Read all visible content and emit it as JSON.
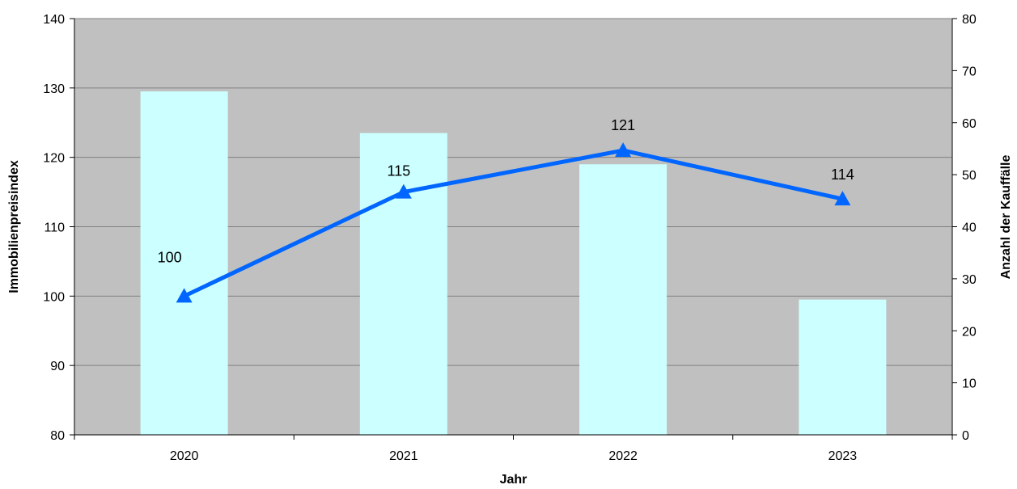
{
  "chart_data": {
    "type": "bar+line",
    "categories": [
      "2020",
      "2021",
      "2022",
      "2023"
    ],
    "xlabel": "Jahr",
    "ylabel_left": "Immobilienpreisindex",
    "ylabel_right": "Anzahl der Kauffälle",
    "ylim_left": [
      80,
      140
    ],
    "ylim_right": [
      0,
      80
    ],
    "yticks_left": [
      "80",
      "90",
      "100",
      "110",
      "120",
      "130",
      "140"
    ],
    "yticks_right": [
      "0",
      "10",
      "20",
      "30",
      "40",
      "50",
      "60",
      "70",
      "80"
    ],
    "grid": true,
    "series": [
      {
        "type": "bar",
        "axis": "right",
        "values": [
          66,
          58,
          52,
          26
        ],
        "color": "#ccffff"
      },
      {
        "type": "line",
        "axis": "left",
        "marker": "triangle",
        "values": [
          100,
          115,
          121,
          114
        ],
        "labels": [
          "100",
          "115",
          "121",
          "114"
        ],
        "color": "#0066ff"
      }
    ],
    "plot_background": "#c0c0c0",
    "grid_color": "#808080"
  }
}
